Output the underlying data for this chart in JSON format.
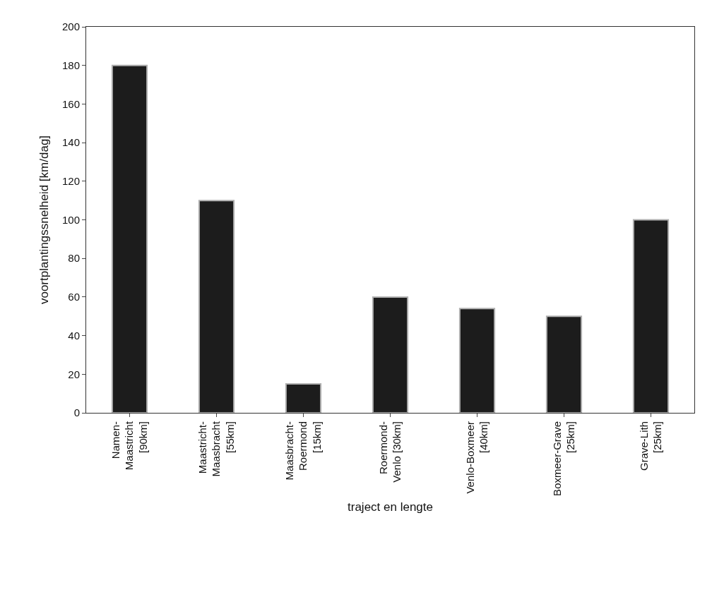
{
  "chart_data": {
    "type": "bar",
    "xlabel": "traject en lengte",
    "ylabel": "voortplantingssnelheid [km/dag]",
    "categories": [
      "Namen-\nMaastricht\n[90km]",
      "Maastricht-\nMaasbracht\n[55km]",
      "Maasbracht-\nRoermond\n[15km]",
      "Roermond-\nVenlo [30km]",
      "Venlo-Boxmeer\n[40km]",
      "Boxmeer-Grave\n[25km]",
      "Grave-Lith\n[25km]"
    ],
    "values": [
      180,
      110,
      15,
      60,
      54,
      50,
      100
    ],
    "color": "#1c1c1c",
    "ylim": [
      0,
      200
    ],
    "yticks": [
      0,
      20,
      40,
      60,
      80,
      100,
      120,
      140,
      160,
      180,
      200
    ],
    "legend": false
  }
}
